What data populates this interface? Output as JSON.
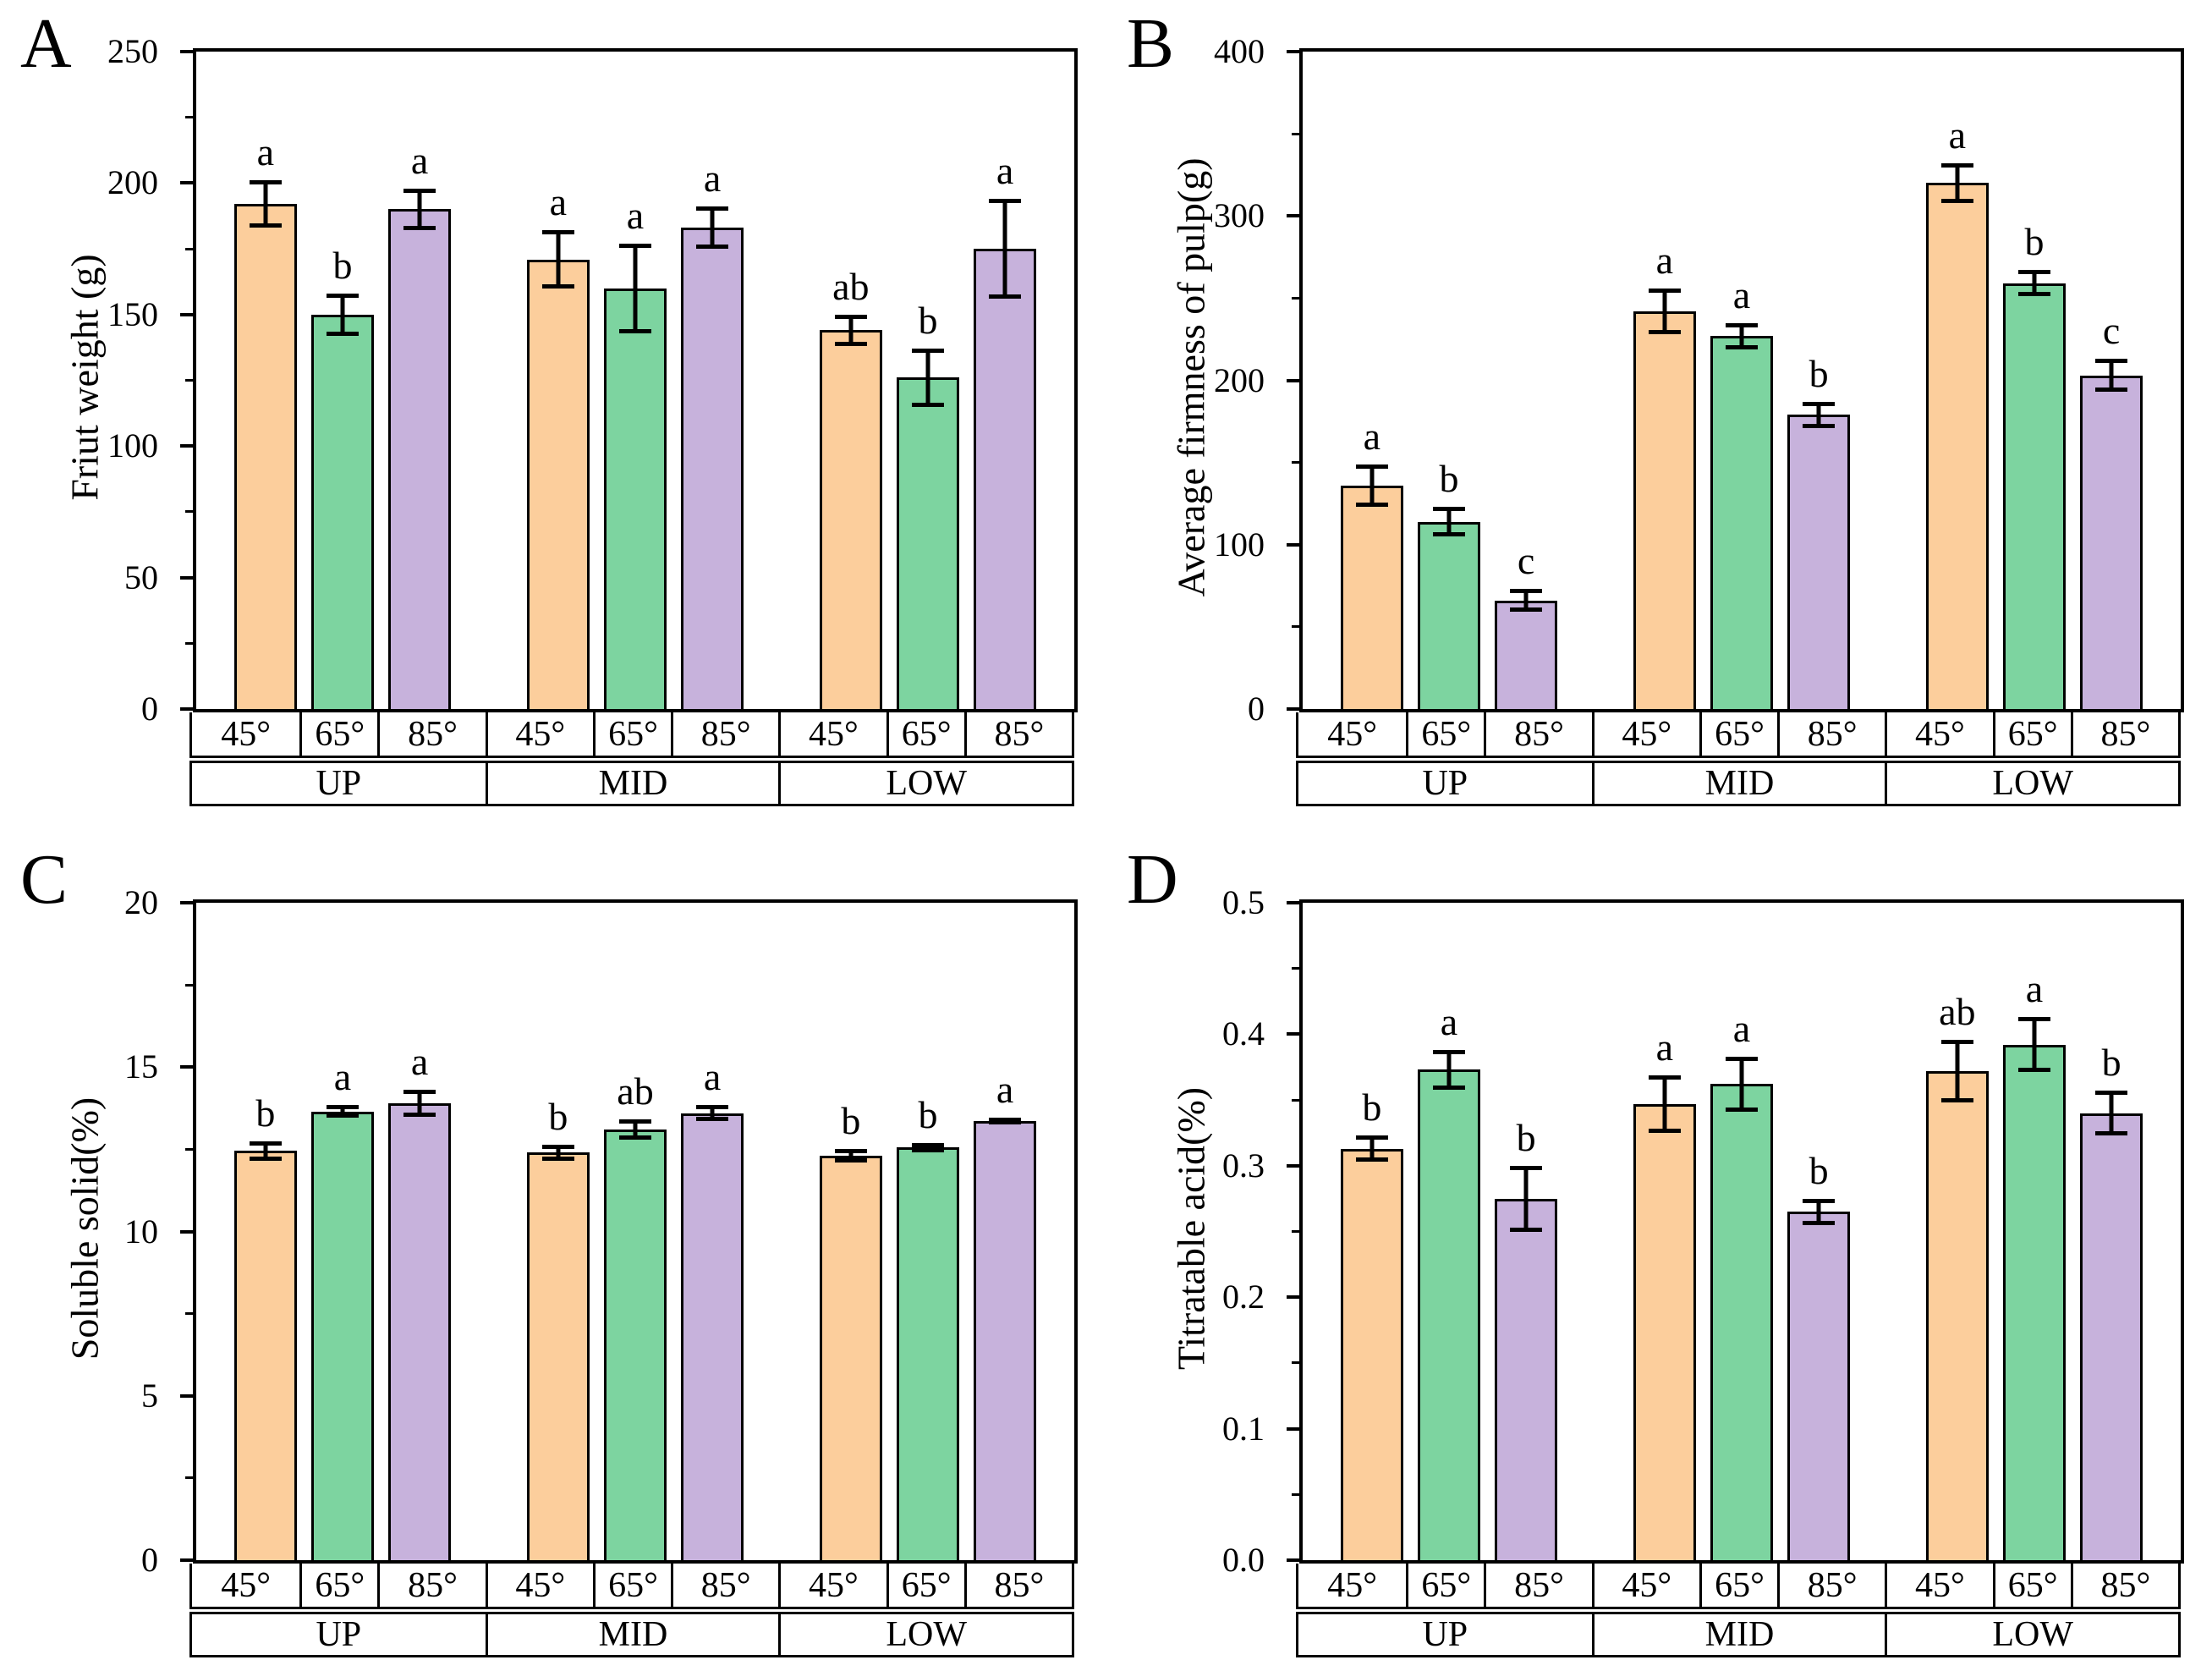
{
  "figure": {
    "background": "#ffffff",
    "bar_colors": [
      "#FCCE9C",
      "#7DD4A0",
      "#C7B2DC"
    ],
    "outline_color": "#000000",
    "series_labels": [
      "45°",
      "65°",
      "85°"
    ],
    "group_labels": [
      "UP",
      "MID",
      "LOW"
    ],
    "panel_labels": [
      "A",
      "B",
      "C",
      "D"
    ]
  },
  "chart_data": [
    {
      "id": "A",
      "panel_label": "A",
      "type": "bar",
      "ylabel": "Friut weight (g)",
      "xlabel": "",
      "ylim": [
        0,
        250
      ],
      "yticks": [
        0,
        50,
        100,
        150,
        200,
        250
      ],
      "ytick_labels": [
        "0",
        "50",
        "100",
        "150",
        "200",
        "250"
      ],
      "minor_tick_step": 25,
      "categories": [
        "UP",
        "MID",
        "LOW"
      ],
      "angle_labels": [
        "45°",
        "65°",
        "85°"
      ],
      "legend_position": "none",
      "grid": false,
      "series": [
        {
          "group": "UP",
          "values": [
            192,
            150,
            190
          ],
          "errors": [
            9,
            8,
            8
          ],
          "sig_letters": [
            "a",
            "b",
            "a"
          ]
        },
        {
          "group": "MID",
          "values": [
            171,
            160,
            183
          ],
          "errors": [
            11,
            17,
            8
          ],
          "sig_letters": [
            "a",
            "a",
            "a"
          ]
        },
        {
          "group": "LOW",
          "values": [
            144,
            126,
            175
          ],
          "errors": [
            6,
            11,
            19
          ],
          "sig_letters": [
            "ab",
            "b",
            "a"
          ]
        }
      ]
    },
    {
      "id": "B",
      "panel_label": "B",
      "type": "bar",
      "ylabel": "Average firmness of pulp(g)",
      "xlabel": "",
      "ylim": [
        0,
        400
      ],
      "yticks": [
        0,
        100,
        200,
        300,
        400
      ],
      "ytick_labels": [
        "0",
        "100",
        "200",
        "300",
        "400"
      ],
      "minor_tick_step": 50,
      "categories": [
        "UP",
        "MID",
        "LOW"
      ],
      "angle_labels": [
        "45°",
        "65°",
        "85°"
      ],
      "legend_position": "none",
      "grid": false,
      "series": [
        {
          "group": "UP",
          "values": [
            136,
            114,
            66
          ],
          "errors": [
            13,
            9,
            7
          ],
          "sig_letters": [
            "a",
            "b",
            "c"
          ]
        },
        {
          "group": "MID",
          "values": [
            242,
            227,
            179
          ],
          "errors": [
            14,
            8,
            8
          ],
          "sig_letters": [
            "a",
            "a",
            "b"
          ]
        },
        {
          "group": "LOW",
          "values": [
            320,
            259,
            203
          ],
          "errors": [
            12,
            8,
            10
          ],
          "sig_letters": [
            "a",
            "b",
            "c"
          ]
        }
      ]
    },
    {
      "id": "C",
      "panel_label": "C",
      "type": "bar",
      "ylabel": "Soluble solid(%)",
      "xlabel": "",
      "ylim": [
        0,
        20
      ],
      "yticks": [
        0,
        5,
        10,
        15,
        20
      ],
      "ytick_labels": [
        "0",
        "5",
        "10",
        "15",
        "20"
      ],
      "minor_tick_step": 2.5,
      "categories": [
        "UP",
        "MID",
        "LOW"
      ],
      "angle_labels": [
        "45°",
        "65°",
        "85°"
      ],
      "legend_position": "none",
      "grid": false,
      "series": [
        {
          "group": "UP",
          "values": [
            12.45,
            13.65,
            13.9
          ],
          "errors": [
            0.3,
            0.2,
            0.4
          ],
          "sig_letters": [
            "b",
            "a",
            "a"
          ]
        },
        {
          "group": "MID",
          "values": [
            12.4,
            13.1,
            13.6
          ],
          "errors": [
            0.25,
            0.3,
            0.25
          ],
          "sig_letters": [
            "b",
            "ab",
            "a"
          ]
        },
        {
          "group": "LOW",
          "values": [
            12.3,
            12.55,
            13.35
          ],
          "errors": [
            0.2,
            0.15,
            0.1
          ],
          "sig_letters": [
            "b",
            "b",
            "a"
          ]
        }
      ]
    },
    {
      "id": "D",
      "panel_label": "D",
      "type": "bar",
      "ylabel": "Titratable acid(%)",
      "xlabel": "",
      "ylim": [
        0,
        0.5
      ],
      "yticks": [
        0,
        0.1,
        0.2,
        0.3,
        0.4,
        0.5
      ],
      "ytick_labels": [
        "0.0",
        "0.1",
        "0.2",
        "0.3",
        "0.4",
        "0.5"
      ],
      "minor_tick_step": 0.05,
      "categories": [
        "UP",
        "MID",
        "LOW"
      ],
      "angle_labels": [
        "45°",
        "65°",
        "85°"
      ],
      "legend_position": "none",
      "grid": false,
      "series": [
        {
          "group": "UP",
          "values": [
            0.313,
            0.373,
            0.275
          ],
          "errors": [
            0.01,
            0.015,
            0.025
          ],
          "sig_letters": [
            "b",
            "a",
            "b"
          ]
        },
        {
          "group": "MID",
          "values": [
            0.347,
            0.362,
            0.265
          ],
          "errors": [
            0.022,
            0.021,
            0.01
          ],
          "sig_letters": [
            "a",
            "a",
            "b"
          ]
        },
        {
          "group": "LOW",
          "values": [
            0.372,
            0.392,
            0.34
          ],
          "errors": [
            0.024,
            0.021,
            0.017
          ],
          "sig_letters": [
            "ab",
            "a",
            "b"
          ]
        }
      ]
    }
  ]
}
